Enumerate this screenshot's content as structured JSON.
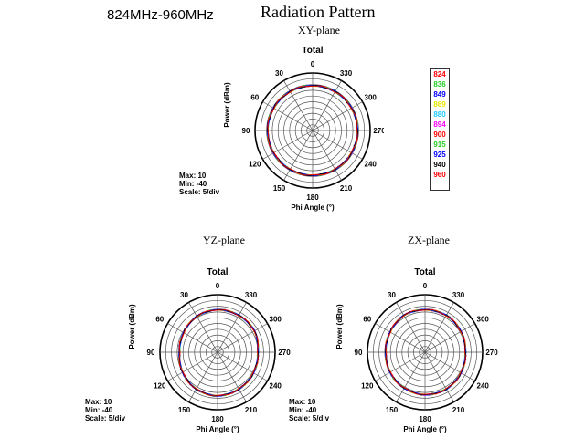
{
  "header": {
    "freq_range": "824MHz-960MHz",
    "title": "Radiation Pattern"
  },
  "legend": {
    "items": [
      {
        "label": "824",
        "color": "#ff0000"
      },
      {
        "label": "836",
        "color": "#22cc22"
      },
      {
        "label": "849",
        "color": "#0000ff"
      },
      {
        "label": "869",
        "color": "#e6e600"
      },
      {
        "label": "880",
        "color": "#22ccff"
      },
      {
        "label": "894",
        "color": "#ff00ff"
      },
      {
        "label": "900",
        "color": "#ff0000"
      },
      {
        "label": "915",
        "color": "#22cc22"
      },
      {
        "label": "925",
        "color": "#0000ff"
      },
      {
        "label": "940",
        "color": "#000000"
      },
      {
        "label": "960",
        "color": "#ff0000"
      }
    ]
  },
  "chart_data": [
    {
      "type": "polar",
      "plane": "XY-plane",
      "title": "Total",
      "ylabel": "Power (dBm)",
      "xlabel": "Phi Angle (°)",
      "angle_ticks": [
        "0",
        "30",
        "60",
        "90",
        "120",
        "150",
        "180",
        "210",
        "240",
        "270",
        "300",
        "330"
      ],
      "rlim": [
        -40,
        10
      ],
      "scale": {
        "max": "Max: 10",
        "min": "Min: -40",
        "div": "Scale: 5/div"
      },
      "theta_deg": [
        0,
        30,
        60,
        90,
        120,
        150,
        180,
        210,
        240,
        270,
        300,
        330,
        360
      ],
      "r_dbm": [
        -1,
        -1,
        -1,
        -1,
        -1,
        -1,
        -1,
        -1,
        -1,
        -1,
        -1,
        -1,
        -1
      ],
      "series_note": "all frequencies overlap near -1 dBm"
    },
    {
      "type": "polar",
      "plane": "YZ-plane",
      "title": "Total",
      "ylabel": "Power (dBm)",
      "xlabel": "Phi Angle (°)",
      "angle_ticks": [
        "0",
        "30",
        "60",
        "90",
        "120",
        "150",
        "180",
        "210",
        "240",
        "270",
        "300",
        "330"
      ],
      "rlim": [
        -40,
        10
      ],
      "scale": {
        "max": "Max: 10",
        "min": "Min: -40",
        "div": "Scale: 5/div"
      },
      "theta_deg": [
        0,
        30,
        60,
        90,
        120,
        150,
        180,
        210,
        240,
        270,
        300,
        330,
        360
      ],
      "r_dbm": [
        -3,
        -4,
        -6,
        -7,
        -5,
        -3,
        -2,
        -3,
        -4,
        -5,
        -3,
        -3,
        -3
      ]
    },
    {
      "type": "polar",
      "plane": "ZX-plane",
      "title": "Total",
      "ylabel": "Power (dBm)",
      "xlabel": "Phi Angle (°)",
      "angle_ticks": [
        "0",
        "30",
        "60",
        "90",
        "120",
        "150",
        "180",
        "210",
        "240",
        "270",
        "300",
        "330"
      ],
      "rlim": [
        -40,
        10
      ],
      "scale": {
        "max": "Max: 10",
        "min": "Min: -40",
        "div": "Scale: 5/div"
      },
      "theta_deg": [
        0,
        30,
        60,
        90,
        120,
        150,
        180,
        210,
        240,
        270,
        300,
        330,
        360
      ],
      "r_dbm": [
        -3,
        -3,
        -5,
        -6,
        -5,
        -4,
        -3,
        -3,
        -4,
        -5,
        -4,
        -3,
        -3
      ]
    }
  ]
}
